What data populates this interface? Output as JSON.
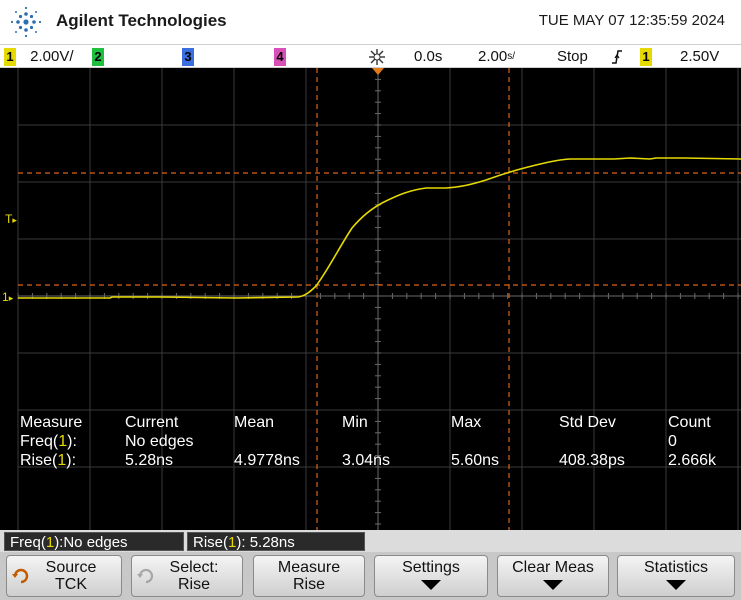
{
  "header": {
    "brand": "Agilent Technologies",
    "datetime": "TUE MAY 07 12:35:59 2024",
    "logo_icon": "agilent-spark-icon"
  },
  "statusbar": {
    "ch1_num": "1",
    "ch1_scale": "2.00V/",
    "ch2_num": "2",
    "ch3_num": "3",
    "ch4_num": "4",
    "trigger_pos_icon": "trigger-position-icon",
    "time_delay": "0.0s",
    "time_scale": "2.00",
    "time_scale_unit": "s/",
    "run_state": "Stop",
    "trig_slope_icon": "rising-edge-icon",
    "trig_source": "1",
    "trig_level": "2.50V"
  },
  "screen": {
    "trig_marker": "T",
    "ch1_marker": "1",
    "colors": {
      "grid": "#555555",
      "trace": "#e6d900",
      "cursor": "#d9631a"
    }
  },
  "measurements": {
    "headers": [
      "Measure",
      "Current",
      "Mean",
      "Min",
      "Max",
      "Std Dev",
      "Count"
    ],
    "rows": [
      {
        "name": "Freq(",
        "src": "1",
        "close": "):",
        "current": "No edges",
        "mean": "",
        "min": "",
        "max": "",
        "std": "",
        "count": "0"
      },
      {
        "name": "Rise(",
        "src": "1",
        "close": "):",
        "current": "5.28ns",
        "mean": "4.9778ns",
        "min": "3.04ns",
        "max": "5.60ns",
        "std": "408.38ps",
        "count": "2.666k"
      }
    ]
  },
  "readouts": [
    {
      "pre": "Freq(",
      "src": "1",
      "post": "):No edges"
    },
    {
      "pre": "Rise(",
      "src": "1",
      "post": "): 5.28ns"
    }
  ],
  "softkeys": {
    "source": {
      "line1": "Source",
      "line2": "TCK",
      "icon": "rotate-knob-icon"
    },
    "select": {
      "line1": "Select:",
      "line2": "Rise",
      "icon": "rotate-knob-icon"
    },
    "measure": {
      "line1": "Measure",
      "line2": "Rise"
    },
    "settings": {
      "line1": "Settings",
      "icon": "down-arrow-icon"
    },
    "clear": {
      "line1": "Clear Meas",
      "icon": "down-arrow-icon"
    },
    "statistics": {
      "line1": "Statistics",
      "icon": "down-arrow-icon"
    }
  }
}
